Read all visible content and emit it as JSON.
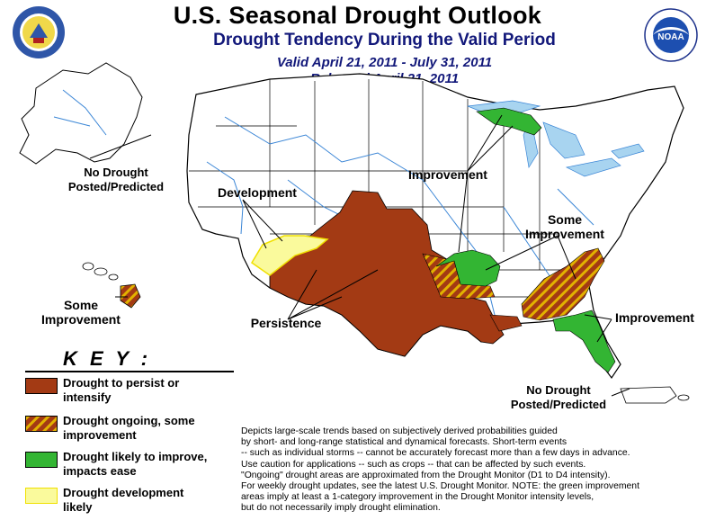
{
  "header": {
    "title": "U.S. Seasonal Drought Outlook",
    "subtitle": "Drought Tendency During the Valid Period",
    "valid_period": "Valid April 21, 2011 - July 31, 2011",
    "released": "Released April 21, 2011"
  },
  "logos": {
    "left": "department-of-commerce-seal",
    "right": "noaa-logo"
  },
  "map_labels": {
    "alaska": [
      "No Drought",
      "Posted/Predicted"
    ],
    "development": "Development",
    "improvement_north": "Improvement",
    "some_improvement_south": [
      "Some",
      "Improvement"
    ],
    "hawaii": [
      "Some",
      "Improvement"
    ],
    "persistence": "Persistence",
    "improvement_southeast": "Improvement",
    "puerto_rico": [
      "No Drought",
      "Posted/Predicted"
    ]
  },
  "key": {
    "title": "K E Y :",
    "items": [
      {
        "lines": [
          "Drought to persist or",
          "intensify"
        ],
        "color": "#a33a14",
        "pattern": "solid"
      },
      {
        "lines": [
          "Drought ongoing, some",
          "improvement"
        ],
        "color": "#a33a14",
        "stripe": "#e2b200",
        "pattern": "hatched"
      },
      {
        "lines": [
          "Drought likely to improve,",
          "impacts ease"
        ],
        "color": "#33b533",
        "pattern": "solid"
      },
      {
        "lines": [
          "Drought development",
          "likely"
        ],
        "color": "#fafa9c",
        "border": "#f0e000",
        "pattern": "solid"
      }
    ]
  },
  "notes": [
    "Depicts large-scale trends based on subjectively derived probabilities guided",
    "by short- and long-range statistical and dynamical forecasts. Short-term events",
    "-- such as individual storms -- cannot be accurately forecast more than a few days in advance.",
    "Use caution for applications -- such as crops -- that can be affected by such events.",
    "\"Ongoing\" drought areas are approximated from the Drought Monitor (D1 to D4 intensity).",
    "For weekly drought updates, see the latest U.S. Drought Monitor. NOTE: the green improvement",
    "areas imply at least a 1-category improvement in the Drought Monitor intensity levels,",
    "but do not necessarily imply drought elimination."
  ],
  "colors": {
    "persist": "#a33a14",
    "improve": "#33b533",
    "development": "#fafa9c",
    "lakes": "#a8d4f0",
    "rivers": "#3b86d6"
  }
}
